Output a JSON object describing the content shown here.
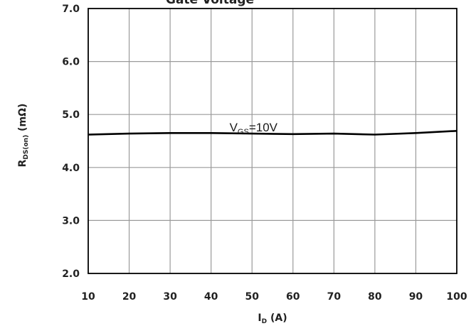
{
  "chart_data": {
    "type": "line",
    "title": "Gate Voltage",
    "xlabel": {
      "main": "I",
      "sub": "D",
      "suffix": " (A)"
    },
    "ylabel": {
      "main": "R",
      "sub": "DS(on)",
      "suffix": " (mΩ)"
    },
    "xlim": [
      10,
      100
    ],
    "ylim": [
      2.0,
      7.0
    ],
    "x_ticks": [
      10,
      20,
      30,
      40,
      50,
      60,
      70,
      80,
      90,
      100
    ],
    "x_tick_labels": [
      "10",
      "20",
      "30",
      "40",
      "50",
      "60",
      "70",
      "80",
      "90",
      "100"
    ],
    "y_ticks": [
      2.0,
      3.0,
      4.0,
      5.0,
      6.0,
      7.0
    ],
    "y_tick_labels": [
      "2.0",
      "3.0",
      "4.0",
      "5.0",
      "6.0",
      "7.0"
    ],
    "grid": true,
    "series": [
      {
        "name": {
          "main": "V",
          "sub": "GS",
          "suffix": "=10V"
        },
        "color": "#000000",
        "x": [
          10,
          20,
          30,
          40,
          50,
          60,
          70,
          80,
          90,
          100
        ],
        "y": [
          4.62,
          4.64,
          4.65,
          4.65,
          4.64,
          4.63,
          4.64,
          4.62,
          4.65,
          4.69
        ]
      }
    ]
  }
}
